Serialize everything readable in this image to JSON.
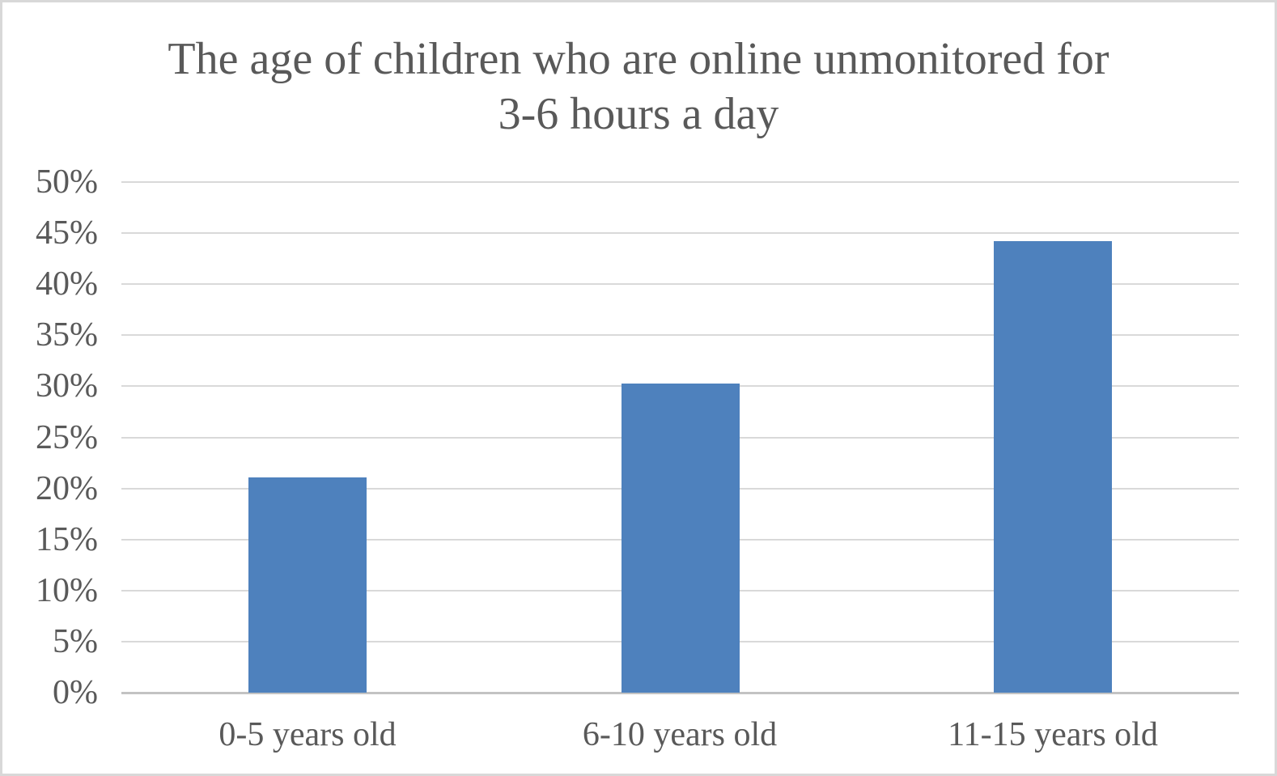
{
  "chart_data": {
    "type": "bar",
    "title": "The age of children who are online unmonitored for 3-6 hours a day",
    "title_lines": [
      "The age of children who are online unmonitored for",
      "3-6 hours a day"
    ],
    "categories": [
      "0-5 years old",
      "6-10 years old",
      "11-15 years old"
    ],
    "values": [
      21.1,
      30.3,
      44.2
    ],
    "unit": "%",
    "xlabel": "",
    "ylabel": "",
    "ylim": [
      0,
      50
    ],
    "ytick_step": 5,
    "ytick_labels": [
      "0%",
      "5%",
      "10%",
      "15%",
      "20%",
      "25%",
      "30%",
      "35%",
      "40%",
      "45%",
      "50%"
    ],
    "grid": true,
    "legend_position": "none",
    "colors": {
      "bar": "#4e81bd",
      "gridline": "#d9d9d9",
      "baseline": "#c3c3c3",
      "text": "#595959",
      "background": "#ffffff",
      "frame_border": "#d8d8d8"
    }
  }
}
